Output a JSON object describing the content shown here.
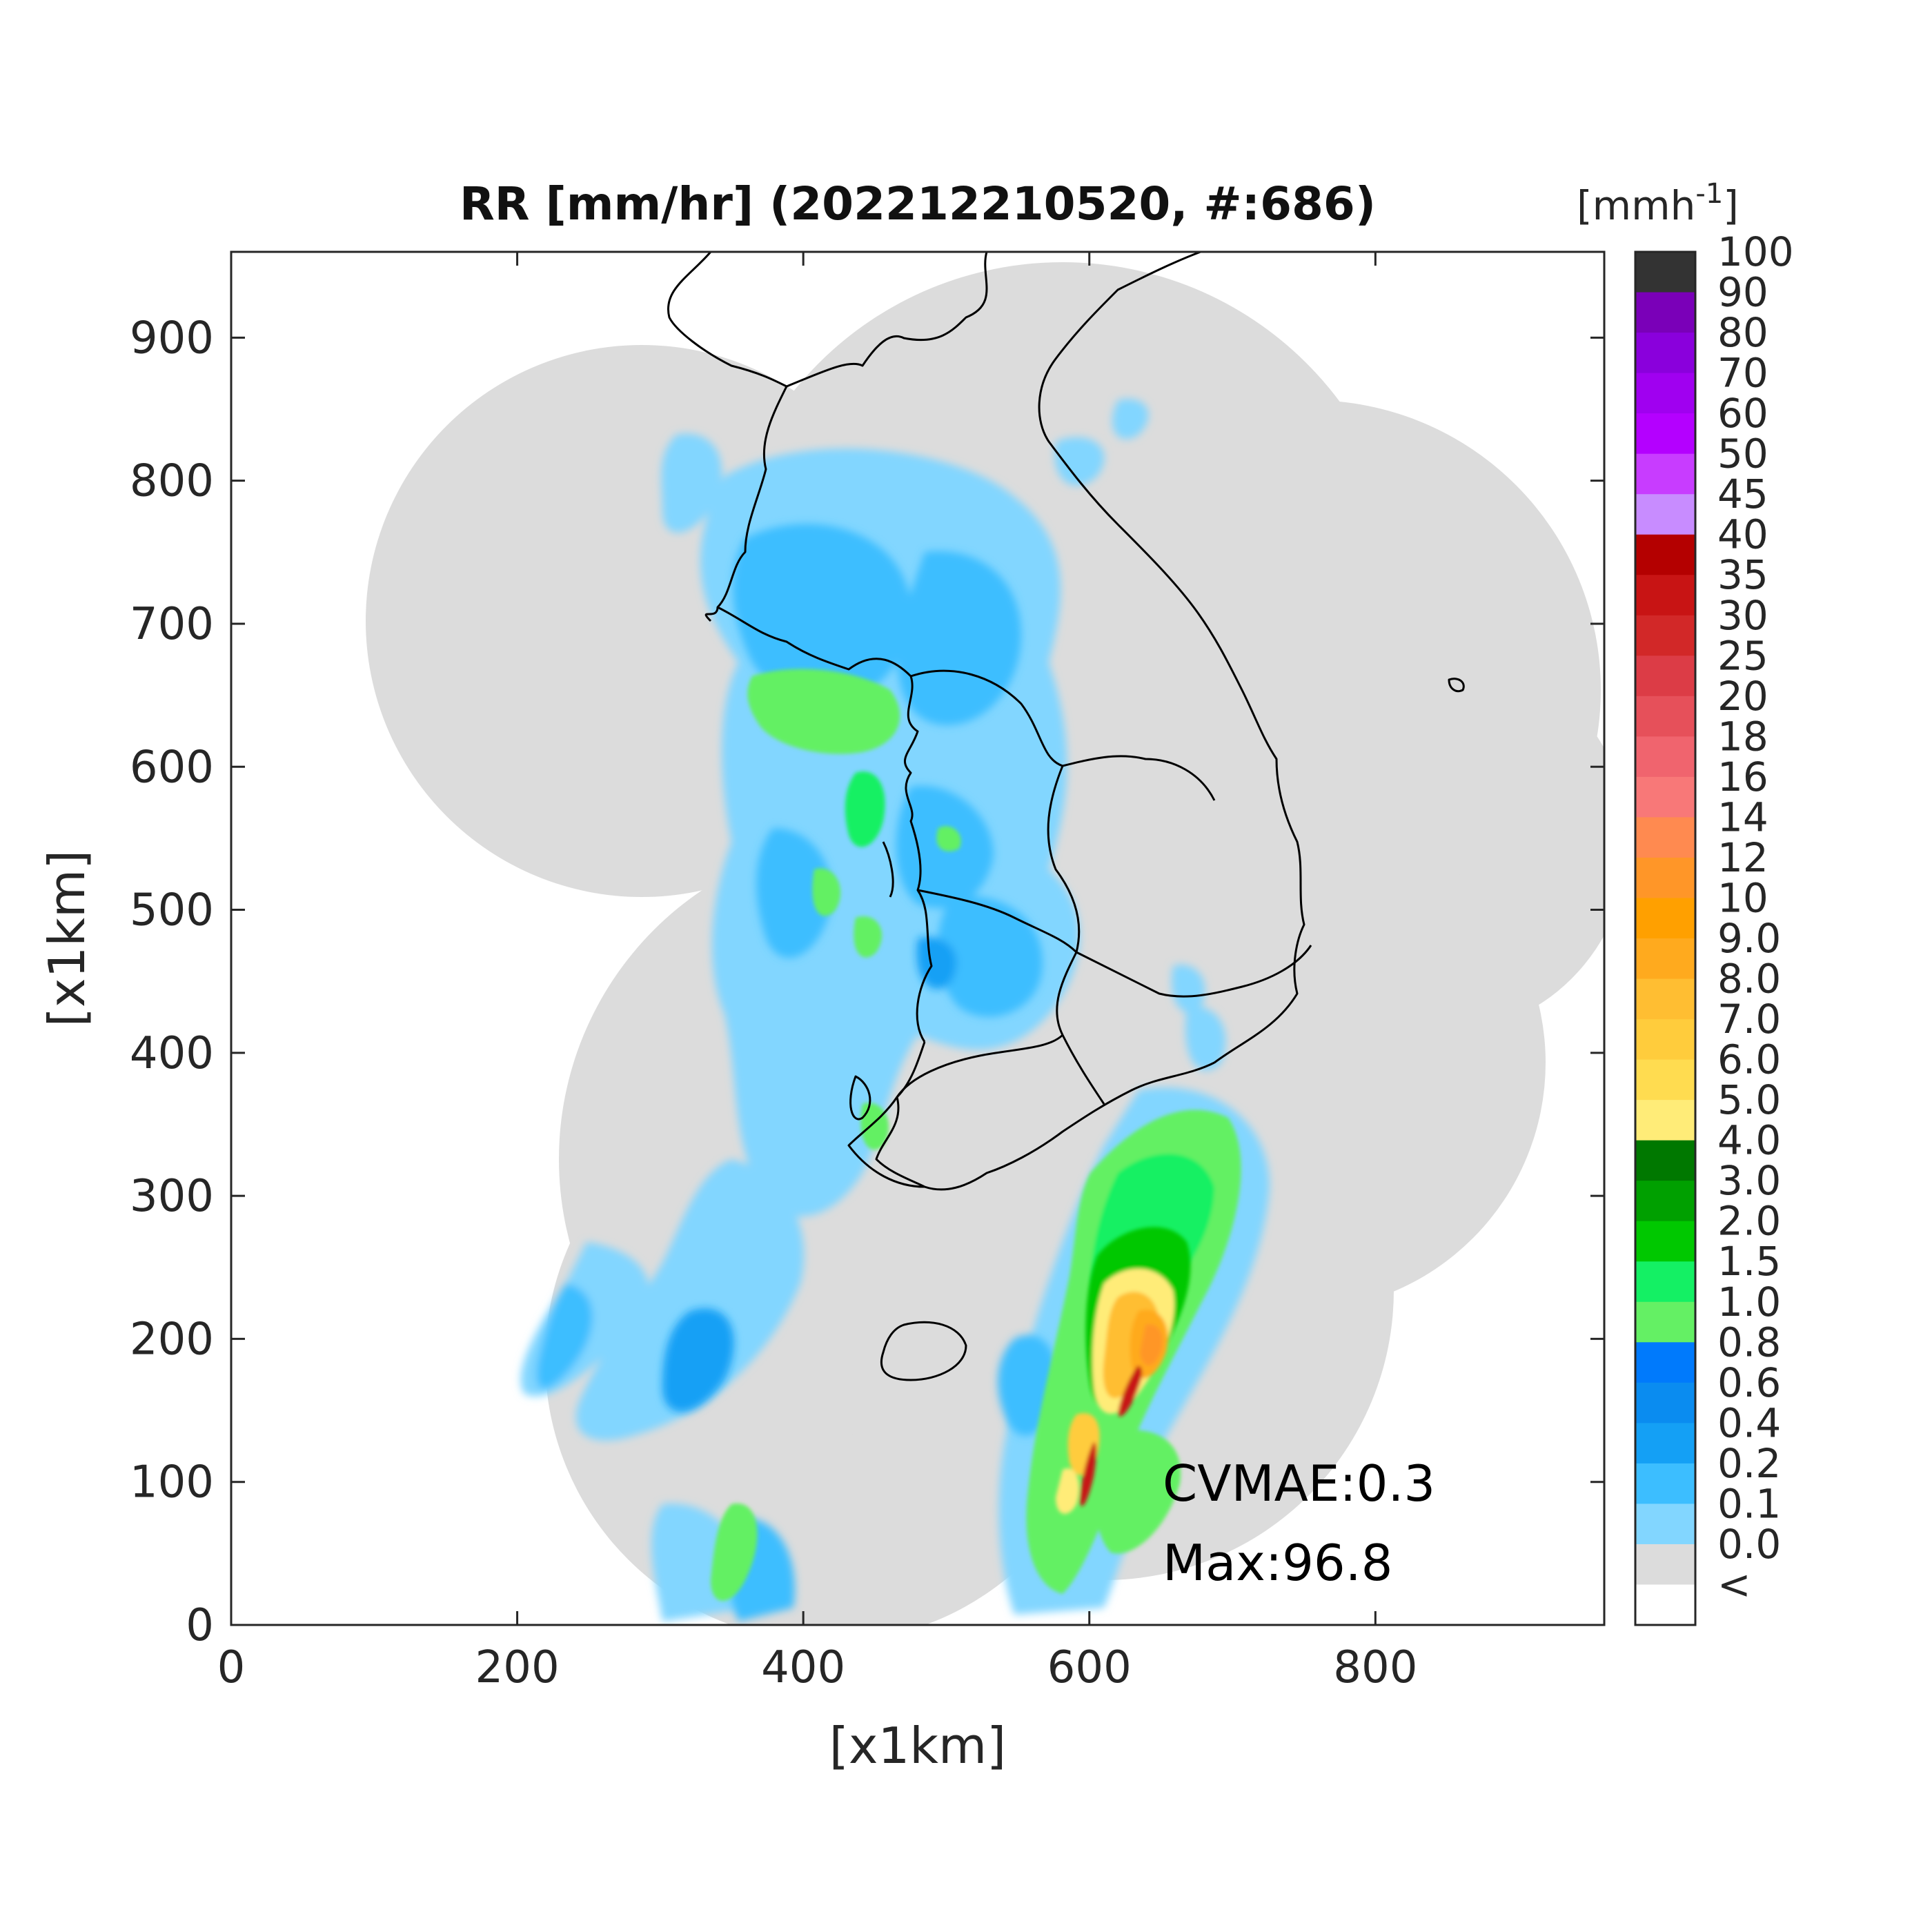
{
  "title": "RR [mm/hr] (202212210520, #:686)",
  "x_axis": {
    "label": "[x1km]",
    "ticks": [
      0,
      200,
      400,
      600,
      800
    ],
    "range": [
      0,
      960
    ]
  },
  "y_axis": {
    "label": "[x1km]",
    "ticks": [
      0,
      100,
      200,
      300,
      400,
      500,
      600,
      700,
      800,
      900
    ],
    "range": [
      0,
      960
    ]
  },
  "colorbar": {
    "unit_text": "[mmh",
    "unit_exp": "-1",
    "unit_close": "]",
    "labels": [
      "100",
      "90",
      "80",
      "70",
      "60",
      "50",
      "45",
      "40",
      "35",
      "30",
      "25",
      "20",
      "18",
      "16",
      "14",
      "12",
      "10",
      "9.0",
      "8.0",
      "7.0",
      "6.0",
      "5.0",
      "4.0",
      "3.0",
      "2.0",
      "1.5",
      "1.0",
      "0.8",
      "0.6",
      "0.4",
      "0.2",
      "0.1",
      "0.0",
      "<"
    ],
    "colors": [
      "#333333",
      "#7a00b8",
      "#8a00dc",
      "#a000f0",
      "#b400ff",
      "#c83cff",
      "#c88cff",
      "#b40000",
      "#c81414",
      "#d22828",
      "#dc3c46",
      "#e6505a",
      "#f0646e",
      "#f87878",
      "#ff8a50",
      "#ff9628",
      "#ffa000",
      "#ffaa1e",
      "#ffbe32",
      "#ffcc3c",
      "#ffdc50",
      "#ffec78",
      "#007800",
      "#00a000",
      "#00c800",
      "#14f064",
      "#64f064",
      "#007afc",
      "#0a8cf0",
      "#14a0f5",
      "#3cbeff",
      "#82d6ff",
      "#dcdcdc",
      "#ffffff"
    ]
  },
  "annotations": {
    "cvmae": "CVMAE:0.3",
    "max": "Max:96.8"
  },
  "colors": {
    "no_data": "#ffffff",
    "zero_rain": "#dcdcdc",
    "coastline": "#000000"
  }
}
